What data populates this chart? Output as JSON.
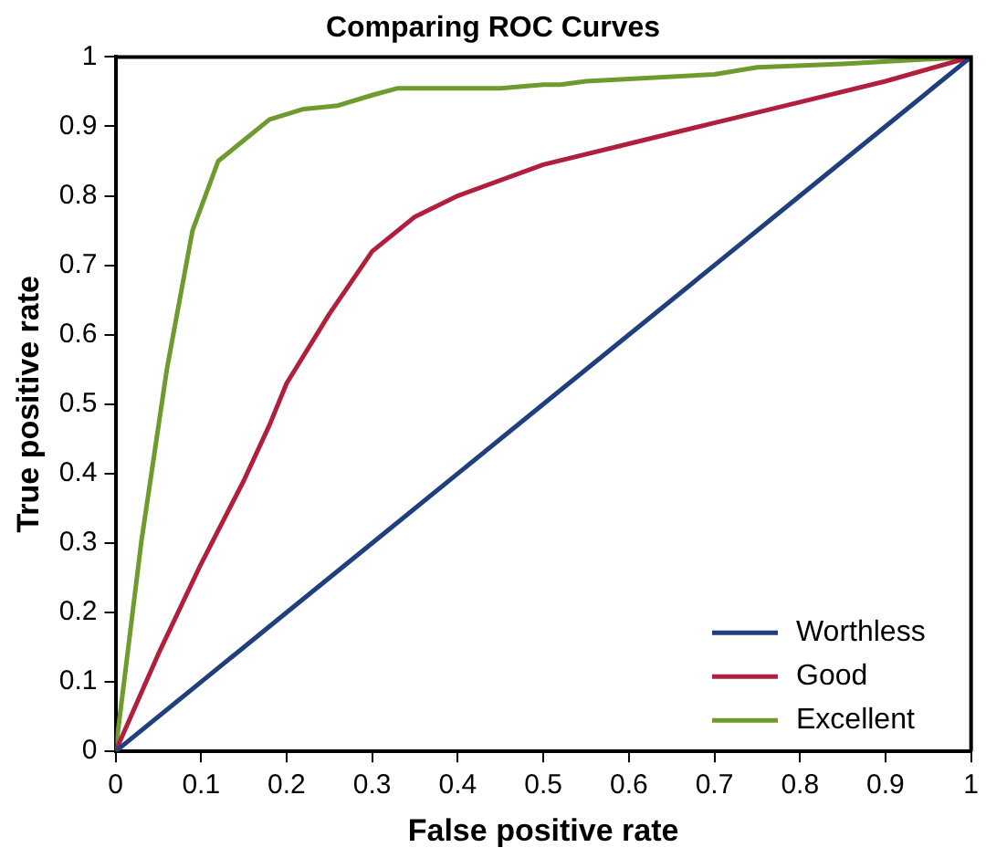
{
  "chart_data": {
    "type": "line",
    "title": "Comparing ROC Curves",
    "xlabel": "False positive rate",
    "ylabel": "True positive rate",
    "xlim": [
      0,
      1
    ],
    "ylim": [
      0,
      1
    ],
    "xticks": [
      0,
      0.1,
      0.2,
      0.3,
      0.4,
      0.5,
      0.6,
      0.7,
      0.8,
      0.9,
      1
    ],
    "yticks": [
      0,
      0.1,
      0.2,
      0.3,
      0.4,
      0.5,
      0.6,
      0.7,
      0.8,
      0.9,
      1
    ],
    "grid": false,
    "legend": "bottom right",
    "marker": "none",
    "line_style": "solid",
    "series": [
      {
        "name": "Worthless",
        "color": "#1f3f7f",
        "x": [
          0,
          0.1,
          0.2,
          0.3,
          0.4,
          0.5,
          0.6,
          0.7,
          0.8,
          0.9,
          1
        ],
        "values": [
          0,
          0.1,
          0.2,
          0.3,
          0.4,
          0.5,
          0.6,
          0.7,
          0.8,
          0.9,
          1
        ]
      },
      {
        "name": "Good",
        "color": "#b0203c",
        "x": [
          0,
          0.05,
          0.1,
          0.15,
          0.18,
          0.2,
          0.25,
          0.3,
          0.35,
          0.4,
          0.5,
          0.6,
          0.7,
          0.8,
          0.9,
          1
        ],
        "values": [
          0,
          0.14,
          0.27,
          0.39,
          0.47,
          0.53,
          0.63,
          0.72,
          0.77,
          0.8,
          0.845,
          0.875,
          0.905,
          0.935,
          0.965,
          1
        ]
      },
      {
        "name": "Excellent",
        "color": "#6f9a2e",
        "x": [
          0,
          0.03,
          0.06,
          0.09,
          0.12,
          0.15,
          0.18,
          0.22,
          0.26,
          0.3,
          0.33,
          0.4,
          0.45,
          0.5,
          0.52,
          0.55,
          0.7,
          0.75,
          0.85,
          1
        ],
        "values": [
          0,
          0.3,
          0.55,
          0.75,
          0.85,
          0.88,
          0.91,
          0.925,
          0.93,
          0.945,
          0.955,
          0.955,
          0.955,
          0.96,
          0.96,
          0.965,
          0.975,
          0.985,
          0.99,
          1
        ]
      }
    ]
  }
}
